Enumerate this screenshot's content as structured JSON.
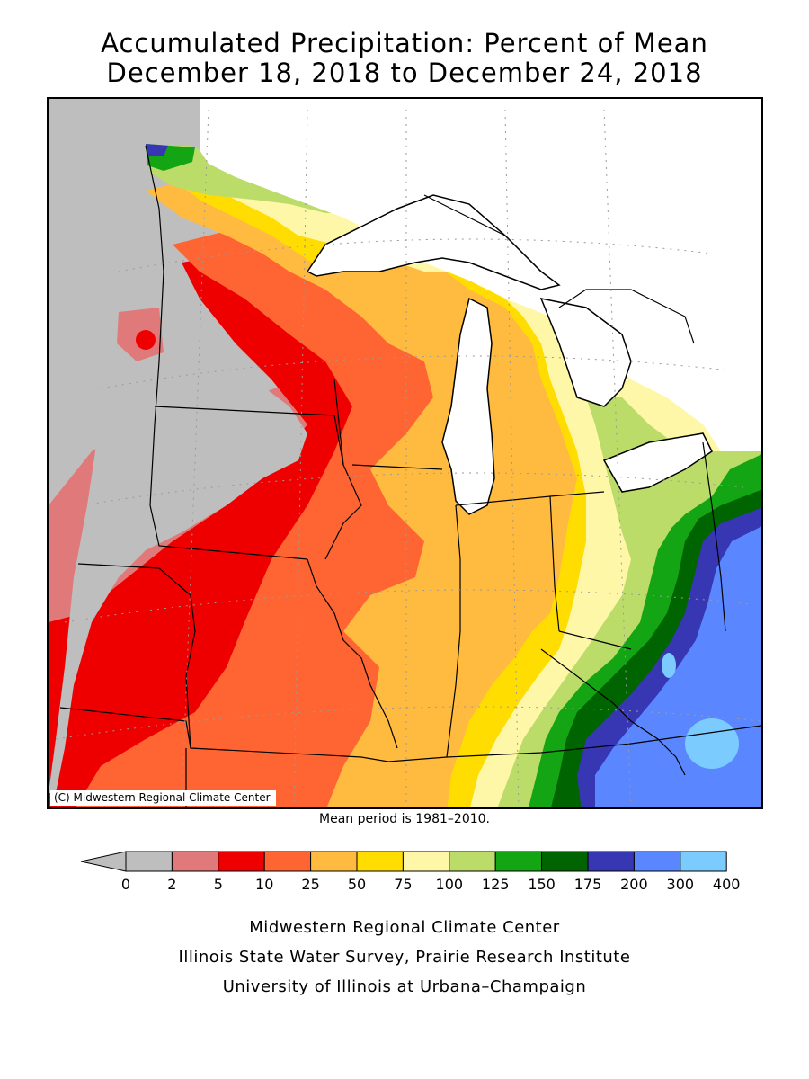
{
  "title_line1": "Accumulated Precipitation: Percent of Mean",
  "title_line2": "December 18, 2018 to December 24, 2018",
  "map": {
    "copyright": "(C) Midwestern Regional Climate Center",
    "region": "Midwest United States",
    "colors": {
      "lt0": "#bebebe",
      "0to2": "#bebebe",
      "2to5": "#e07a7a",
      "5to10": "#ee0000",
      "10to25": "#ff6533",
      "25to50": "#ffbb3f",
      "50to75": "#ffdd00",
      "75to100": "#fff7a8",
      "100to125": "#bcdc6a",
      "125to150": "#14a514",
      "150to175": "#006400",
      "175to200": "#3737b4",
      "200to300": "#5a87ff",
      "300to400": "#7ccbff"
    }
  },
  "mean_period": "Mean period is 1981–2010.",
  "legend": {
    "ticks": [
      "0",
      "2",
      "5",
      "10",
      "25",
      "50",
      "75",
      "100",
      "125",
      "150",
      "175",
      "200",
      "300",
      "400"
    ],
    "colors": [
      "#bebebe",
      "#e07a7a",
      "#ee0000",
      "#ff6533",
      "#ffbb3f",
      "#ffdd00",
      "#fff7a8",
      "#bcdc6a",
      "#14a514",
      "#006400",
      "#3737b4",
      "#5a87ff",
      "#7ccbff"
    ],
    "underflow_color": "#bebebe"
  },
  "credits": {
    "line1": "Midwestern Regional Climate Center",
    "line2": "Illinois State Water Survey, Prairie Research Institute",
    "line3": "University of Illinois at Urbana–Champaign"
  }
}
